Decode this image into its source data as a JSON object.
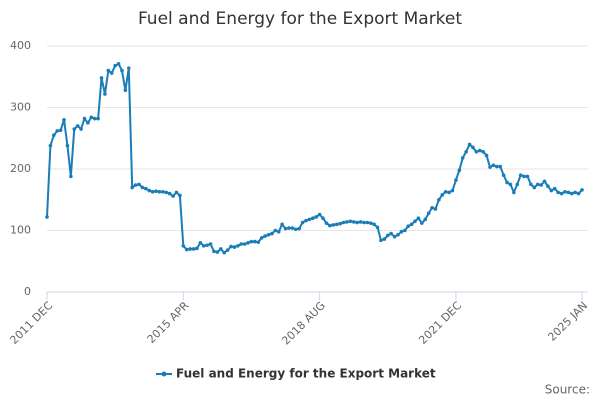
{
  "chart_data": {
    "type": "line",
    "title": "Fuel and Energy for the Export Market",
    "source_label": "Source:",
    "categories": [
      "2011 DEC",
      null,
      null,
      null,
      null,
      null,
      null,
      null,
      null,
      null,
      null,
      null,
      null,
      null,
      null,
      null,
      null,
      null,
      null,
      null,
      null,
      null,
      null,
      null,
      null,
      null,
      null,
      null,
      null,
      null,
      null,
      null,
      null,
      null,
      null,
      null,
      null,
      null,
      null,
      null,
      "2015 APR",
      null,
      null,
      null,
      null,
      null,
      null,
      null,
      null,
      null,
      null,
      null,
      null,
      null,
      null,
      null,
      null,
      null,
      null,
      null,
      null,
      null,
      null,
      null,
      null,
      null,
      null,
      null,
      null,
      null,
      null,
      null,
      null,
      null,
      null,
      null,
      null,
      null,
      null,
      null,
      "2018 AUG",
      null,
      null,
      null,
      null,
      null,
      null,
      null,
      null,
      null,
      null,
      null,
      null,
      null,
      null,
      null,
      null,
      null,
      null,
      null,
      null,
      null,
      null,
      null,
      null,
      null,
      null,
      null,
      null,
      null,
      null,
      null,
      null,
      null,
      null,
      null,
      null,
      null,
      null,
      null,
      "2021 DEC",
      null,
      null,
      null,
      null,
      null,
      null,
      null,
      null,
      null,
      null,
      null,
      null,
      null,
      null,
      null,
      null,
      null,
      null,
      null,
      null,
      null,
      null,
      null,
      null,
      null,
      null,
      null,
      null,
      null,
      null,
      null,
      null,
      null,
      null,
      null,
      null,
      "2025 JAN"
    ],
    "series": [
      {
        "name": "Fuel and Energy for the Export Market",
        "color": "#1a7db8",
        "values": [
          122,
          238,
          255,
          262,
          263,
          280,
          238,
          188,
          265,
          270,
          265,
          282,
          275,
          284,
          282,
          282,
          348,
          322,
          360,
          356,
          368,
          371,
          360,
          328,
          364,
          170,
          174,
          175,
          170,
          168,
          165,
          163,
          164,
          163,
          163,
          162,
          160,
          156,
          162,
          157,
          75,
          69,
          70,
          70,
          71,
          80,
          75,
          76,
          78,
          66,
          65,
          70,
          64,
          68,
          74,
          73,
          75,
          78,
          78,
          80,
          82,
          82,
          81,
          88,
          91,
          93,
          95,
          100,
          98,
          110,
          103,
          104,
          104,
          102,
          103,
          113,
          116,
          118,
          120,
          122,
          126,
          120,
          112,
          108,
          109,
          110,
          111,
          113,
          114,
          115,
          114,
          113,
          114,
          113,
          113,
          112,
          110,
          105,
          84,
          86,
          92,
          95,
          90,
          93,
          98,
          100,
          107,
          110,
          115,
          120,
          112,
          118,
          128,
          137,
          135,
          150,
          158,
          163,
          162,
          165,
          182,
          198,
          218,
          228,
          240,
          235,
          228,
          230,
          228,
          222,
          203,
          206,
          204,
          204,
          190,
          178,
          175,
          162,
          175,
          190,
          188,
          188,
          175,
          170,
          175,
          174,
          180,
          172,
          165,
          168,
          162,
          160,
          163,
          162,
          160,
          162,
          160,
          166
        ]
      }
    ],
    "ylim": [
      0,
      400
    ],
    "yticks": [
      0,
      100,
      200,
      300,
      400
    ],
    "grid": true
  }
}
